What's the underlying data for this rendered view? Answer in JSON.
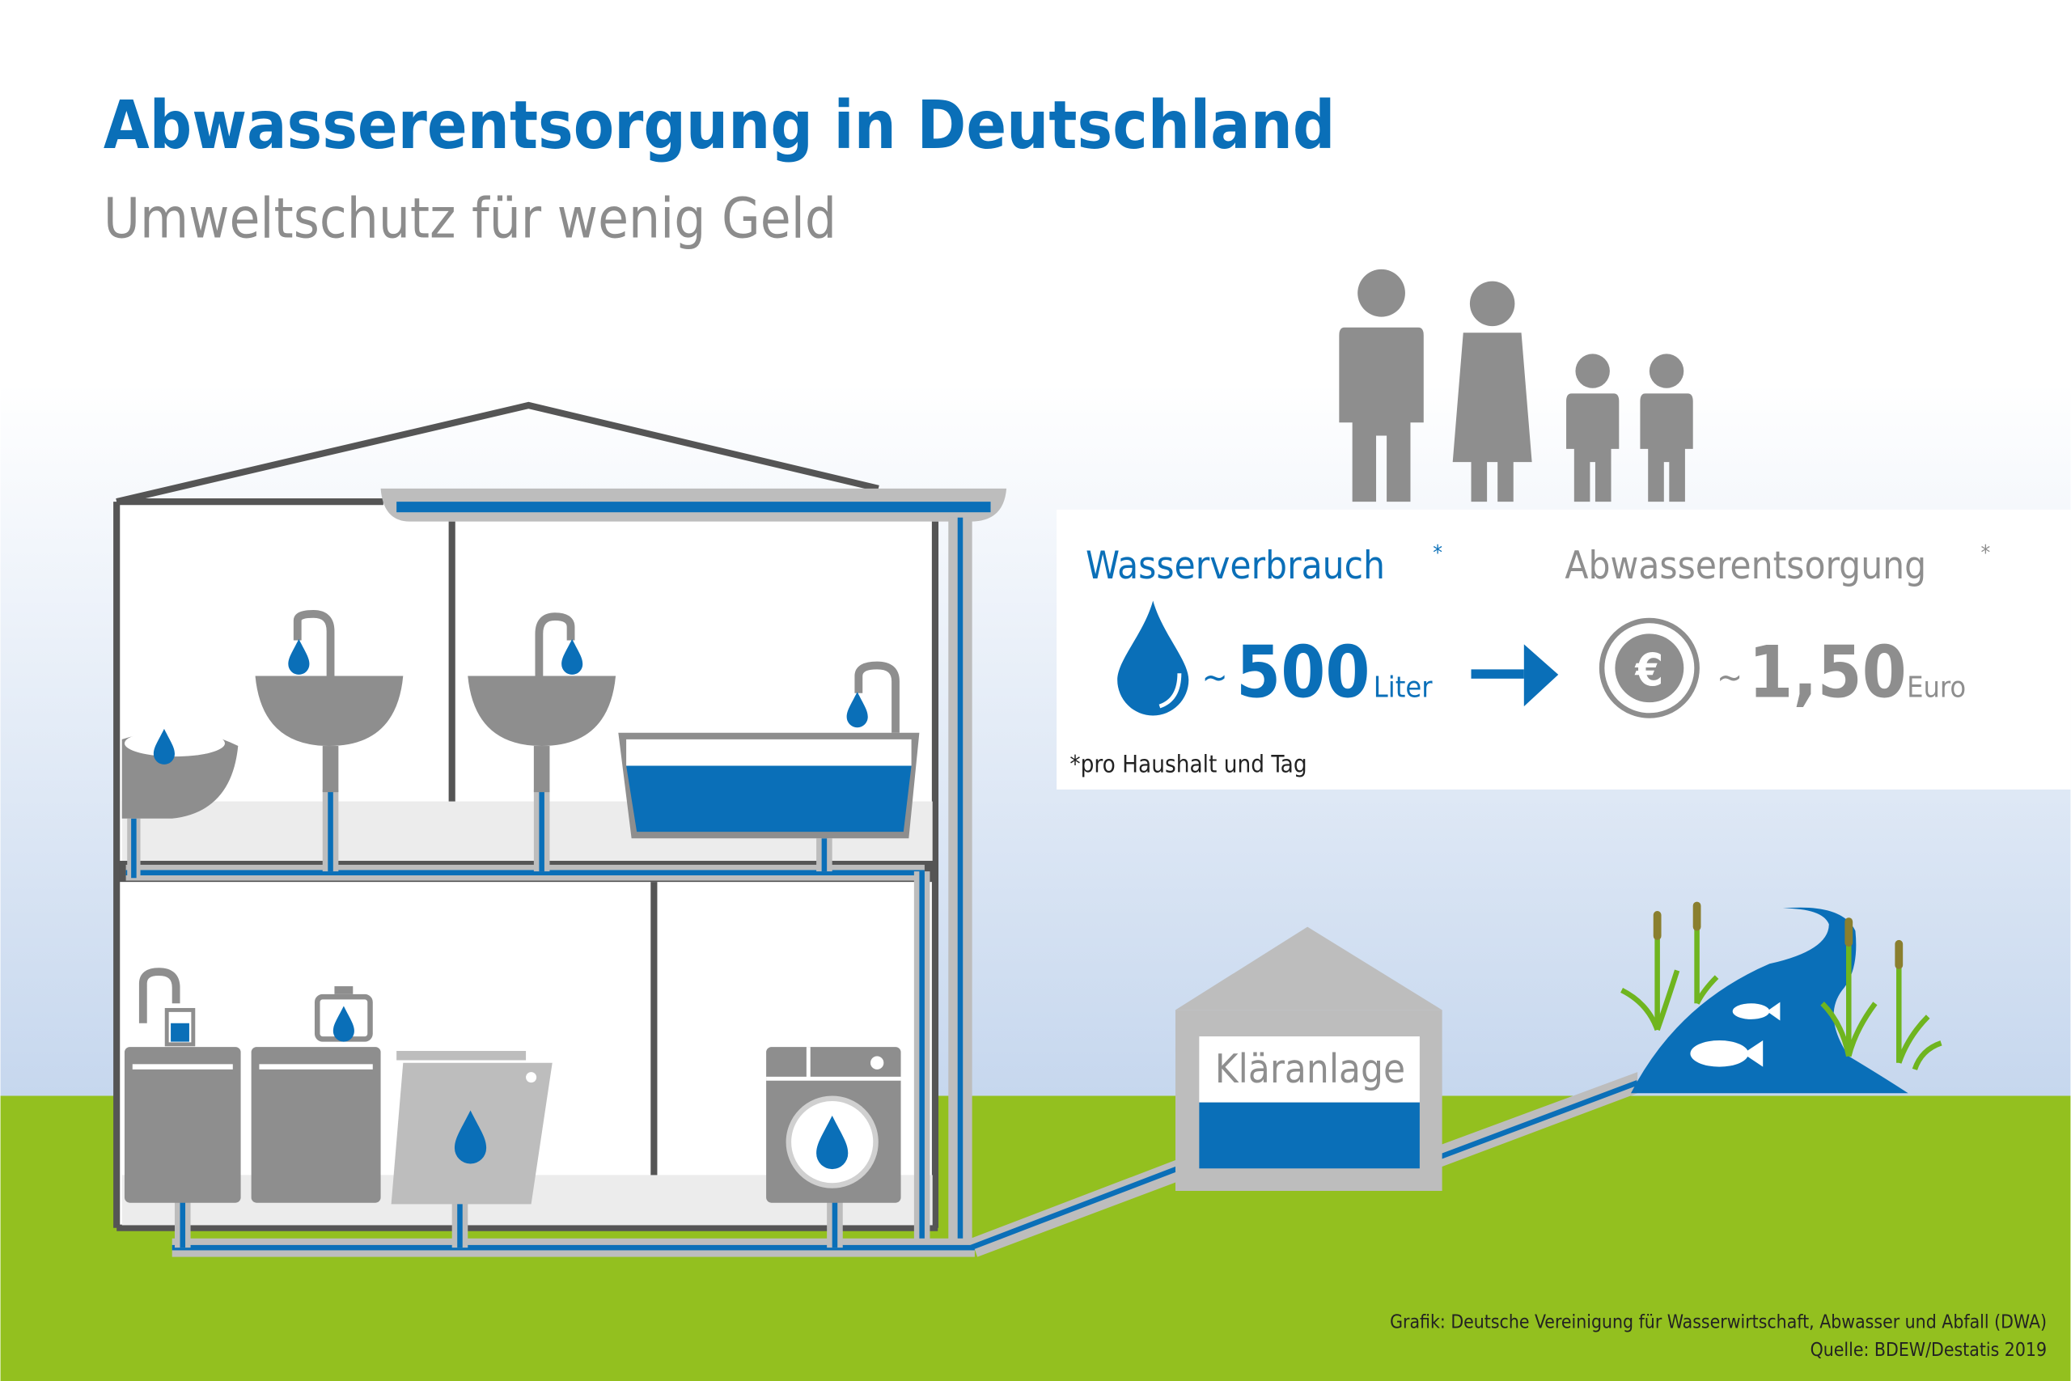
{
  "header": {
    "title": "Abwasserentsorgung in Deutschland",
    "subtitle": "Umweltschutz für wenig Geld"
  },
  "info_box": {
    "consumption_label": "Wasserverbrauch",
    "consumption_asterisk": "*",
    "consumption_tilde": "~",
    "consumption_value": "500",
    "consumption_unit": "Liter",
    "disposal_label": "Abwasserentsorgung",
    "disposal_asterisk": "*",
    "disposal_tilde": "~",
    "disposal_value": "1,50",
    "disposal_unit": "Euro",
    "euro_symbol": "€",
    "footnote": "*pro Haushalt und Tag",
    "icons": [
      "water-drop-icon",
      "arrow-right-icon",
      "euro-coin-icon",
      "family-icon"
    ]
  },
  "plant": {
    "label": "Kläranlage"
  },
  "footer": {
    "credit": "Grafik: Deutsche Vereinigung für Wasserwirtschaft, Abwasser und Abfall (DWA)",
    "source": "Quelle: BDEW/Destatis 2019"
  },
  "colors": {
    "blue": "#0a6fb8",
    "gray": "#8e8e8e",
    "grass": "#93c01f",
    "sky": "#c9d9ef"
  }
}
